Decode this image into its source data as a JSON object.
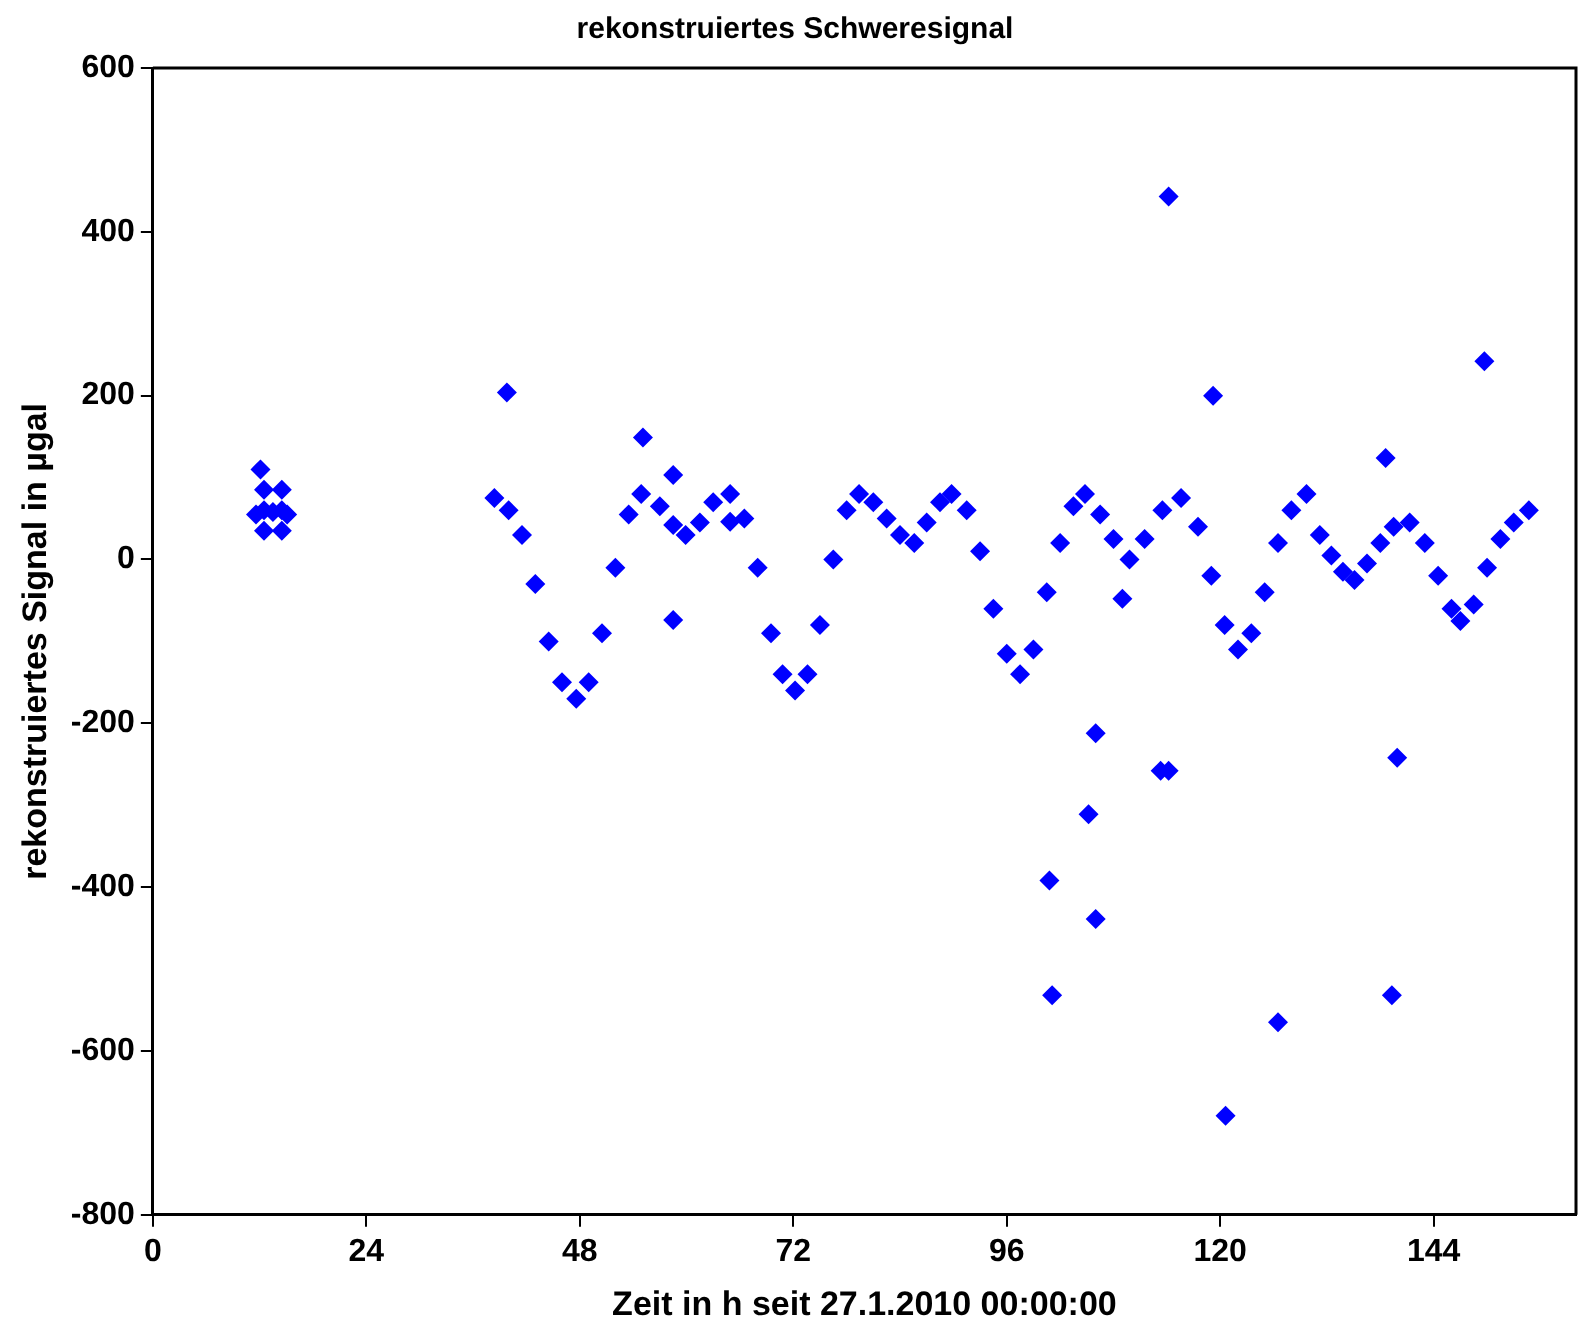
{
  "chart_data": {
    "type": "scatter",
    "title": "rekonstruiertes Schweresignal",
    "xlabel": "Zeit in h seit 27.1.2010 00:00:00",
    "ylabel": "rekonstruiertes Signal in µgal",
    "xlim": [
      0,
      160
    ],
    "xticks": [
      0,
      24,
      48,
      72,
      96,
      120,
      144
    ],
    "ylim": [
      -800,
      600
    ],
    "yticks": [
      -800,
      -600,
      -400,
      -200,
      0,
      200,
      400,
      600
    ],
    "grid": false,
    "legend": false,
    "marker": "diamond",
    "series": [
      {
        "color": "#0000ff",
        "x": [
          11.6,
          12.1,
          12.5,
          12.5,
          12.5,
          13.5,
          14.5,
          14.5,
          14.5,
          15.1,
          38.4,
          39.8,
          40,
          41.5,
          43,
          44.5,
          46,
          47.6,
          49,
          50.5,
          52,
          53.5,
          54.9,
          55.1,
          57,
          58.5,
          58.5,
          58.5,
          59.9,
          61.5,
          63,
          64.9,
          64.9,
          66.5,
          68,
          69.5,
          70.8,
          72.2,
          73.6,
          75,
          76.5,
          78,
          79.4,
          81,
          82.5,
          84,
          85.6,
          87,
          88.5,
          89.8,
          91.5,
          93,
          94.5,
          96,
          97.5,
          99,
          100.5,
          100.8,
          101.1,
          102,
          103.5,
          104.8,
          105.2,
          106,
          106,
          106.5,
          108,
          109,
          109.8,
          111.5,
          113.3,
          113.5,
          114.2,
          114.2,
          115.6,
          117.5,
          119,
          119.2,
          120.5,
          120.6,
          122,
          123.5,
          125,
          126.5,
          126.5,
          128,
          129.7,
          131.2,
          132.5,
          133.8,
          135.1,
          136.5,
          138,
          138.6,
          139.3,
          139.5,
          139.9,
          141.3,
          143,
          144.5,
          146,
          147,
          148.5,
          149.7,
          150,
          151.5,
          153,
          154.7
        ],
        "values": [
          55,
          110,
          35,
          60,
          85,
          58,
          35,
          60,
          85,
          55,
          75,
          204,
          60,
          30,
          -30,
          -100,
          -150,
          -170,
          -150,
          -90,
          -10,
          55,
          80,
          149,
          65,
          42,
          103,
          -74,
          30,
          45,
          70,
          80,
          46,
          50,
          -10,
          -90,
          -140,
          -160,
          -140,
          -80,
          0,
          60,
          80,
          70,
          50,
          30,
          20,
          45,
          70,
          80,
          60,
          10,
          -60,
          -115,
          -140,
          -110,
          -40,
          -392,
          -532,
          20,
          65,
          80,
          -311,
          -212,
          -439,
          55,
          25,
          -48,
          0,
          25,
          -258,
          60,
          -258,
          443,
          75,
          40,
          -20,
          200,
          -80,
          -679,
          -110,
          -90,
          -40,
          -565,
          20,
          60,
          80,
          30,
          5,
          -15,
          -25,
          -5,
          20,
          124,
          -532,
          40,
          -242,
          45,
          20,
          -20,
          -60,
          -75,
          -55,
          242,
          -10,
          25,
          45,
          60
        ]
      }
    ]
  }
}
